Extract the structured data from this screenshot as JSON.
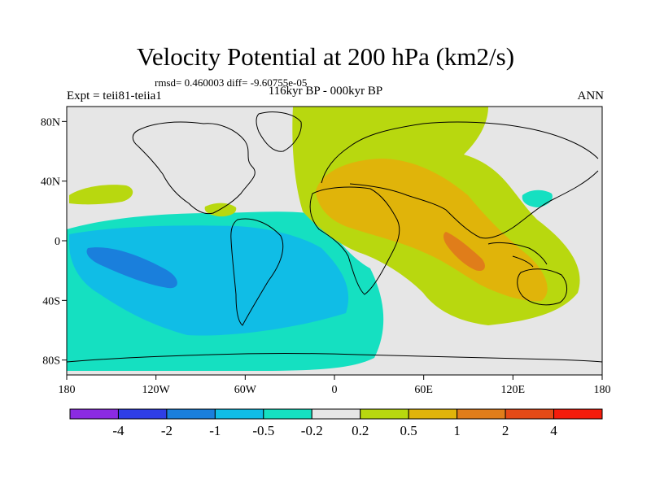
{
  "title": "Velocity Potential at 200 hPa (km2/s)",
  "stats": "rmsd= 0.460003 diff= -9.60755e-05",
  "left_label": "Expt = teii81-teiia1",
  "center_label": "116kyr BP - 000kyr BP",
  "right_label": "ANN",
  "map": {
    "projection": "cylindrical-equidistant",
    "lon_range": [
      -180,
      180
    ],
    "lat_range": [
      -90,
      90
    ],
    "lat_ticks": [
      {
        "value": 80,
        "label": "80N"
      },
      {
        "value": 40,
        "label": "40N"
      },
      {
        "value": 0,
        "label": "0"
      },
      {
        "value": -40,
        "label": "40S"
      },
      {
        "value": -80,
        "label": "80S"
      }
    ],
    "lon_ticks": [
      {
        "value": -180,
        "label": "180"
      },
      {
        "value": -120,
        "label": "120W"
      },
      {
        "value": -60,
        "label": "60W"
      },
      {
        "value": 0,
        "label": "0"
      },
      {
        "value": 60,
        "label": "60E"
      },
      {
        "value": 120,
        "label": "120E"
      },
      {
        "value": 180,
        "label": "180"
      }
    ]
  },
  "colorbar": {
    "colors": [
      "#8b2be2",
      "#2f3ee6",
      "#1a7fdc",
      "#10bde6",
      "#15e0c1",
      "#e6e6e6",
      "#b8d80f",
      "#e0b40a",
      "#e07d1a",
      "#e54a17",
      "#f51c0c"
    ],
    "labels": [
      "-4",
      "-2",
      "-1",
      "-0.5",
      "-0.2",
      "0.2",
      "0.5",
      "1",
      "2",
      "4"
    ]
  }
}
